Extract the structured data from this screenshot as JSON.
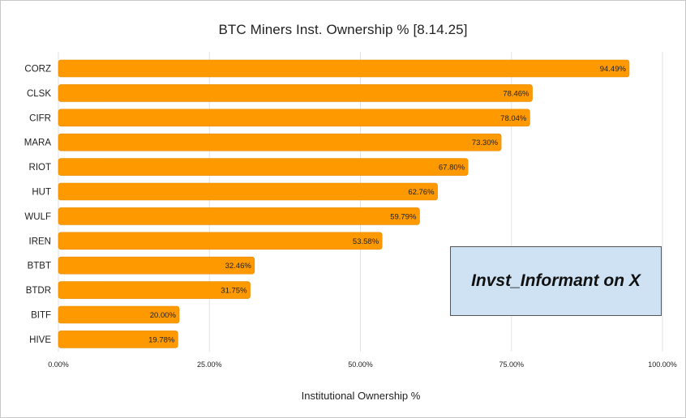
{
  "chart_data": {
    "type": "bar",
    "orientation": "horizontal",
    "title": "BTC Miners Inst. Ownership % [8.14.25]",
    "xlabel": "Institutional Ownership %",
    "ylabel": "",
    "categories": [
      "CORZ",
      "CLSK",
      "CIFR",
      "MARA",
      "RIOT",
      "HUT",
      "WULF",
      "IREN",
      "BTBT",
      "BTDR",
      "BITF",
      "HIVE"
    ],
    "values": [
      94.49,
      78.46,
      78.04,
      73.3,
      67.8,
      62.76,
      59.79,
      53.58,
      32.46,
      31.75,
      20.0,
      19.78
    ],
    "data_labels": [
      "94.49%",
      "78.46%",
      "78.04%",
      "73.30%",
      "67.80%",
      "62.76%",
      "59.79%",
      "53.58%",
      "32.46%",
      "31.75%",
      "20.00%",
      "19.78%"
    ],
    "xlim": [
      0,
      100
    ],
    "x_ticks": [
      0,
      25,
      50,
      75,
      100
    ],
    "x_tick_labels": [
      "0.00%",
      "25.00%",
      "50.00%",
      "75.00%",
      "100.00%"
    ],
    "grid": true,
    "legend": "none",
    "bar_color": "#ff9900"
  },
  "watermark": {
    "text": "Invst_Informant on X",
    "background": "#cfe2f3"
  }
}
